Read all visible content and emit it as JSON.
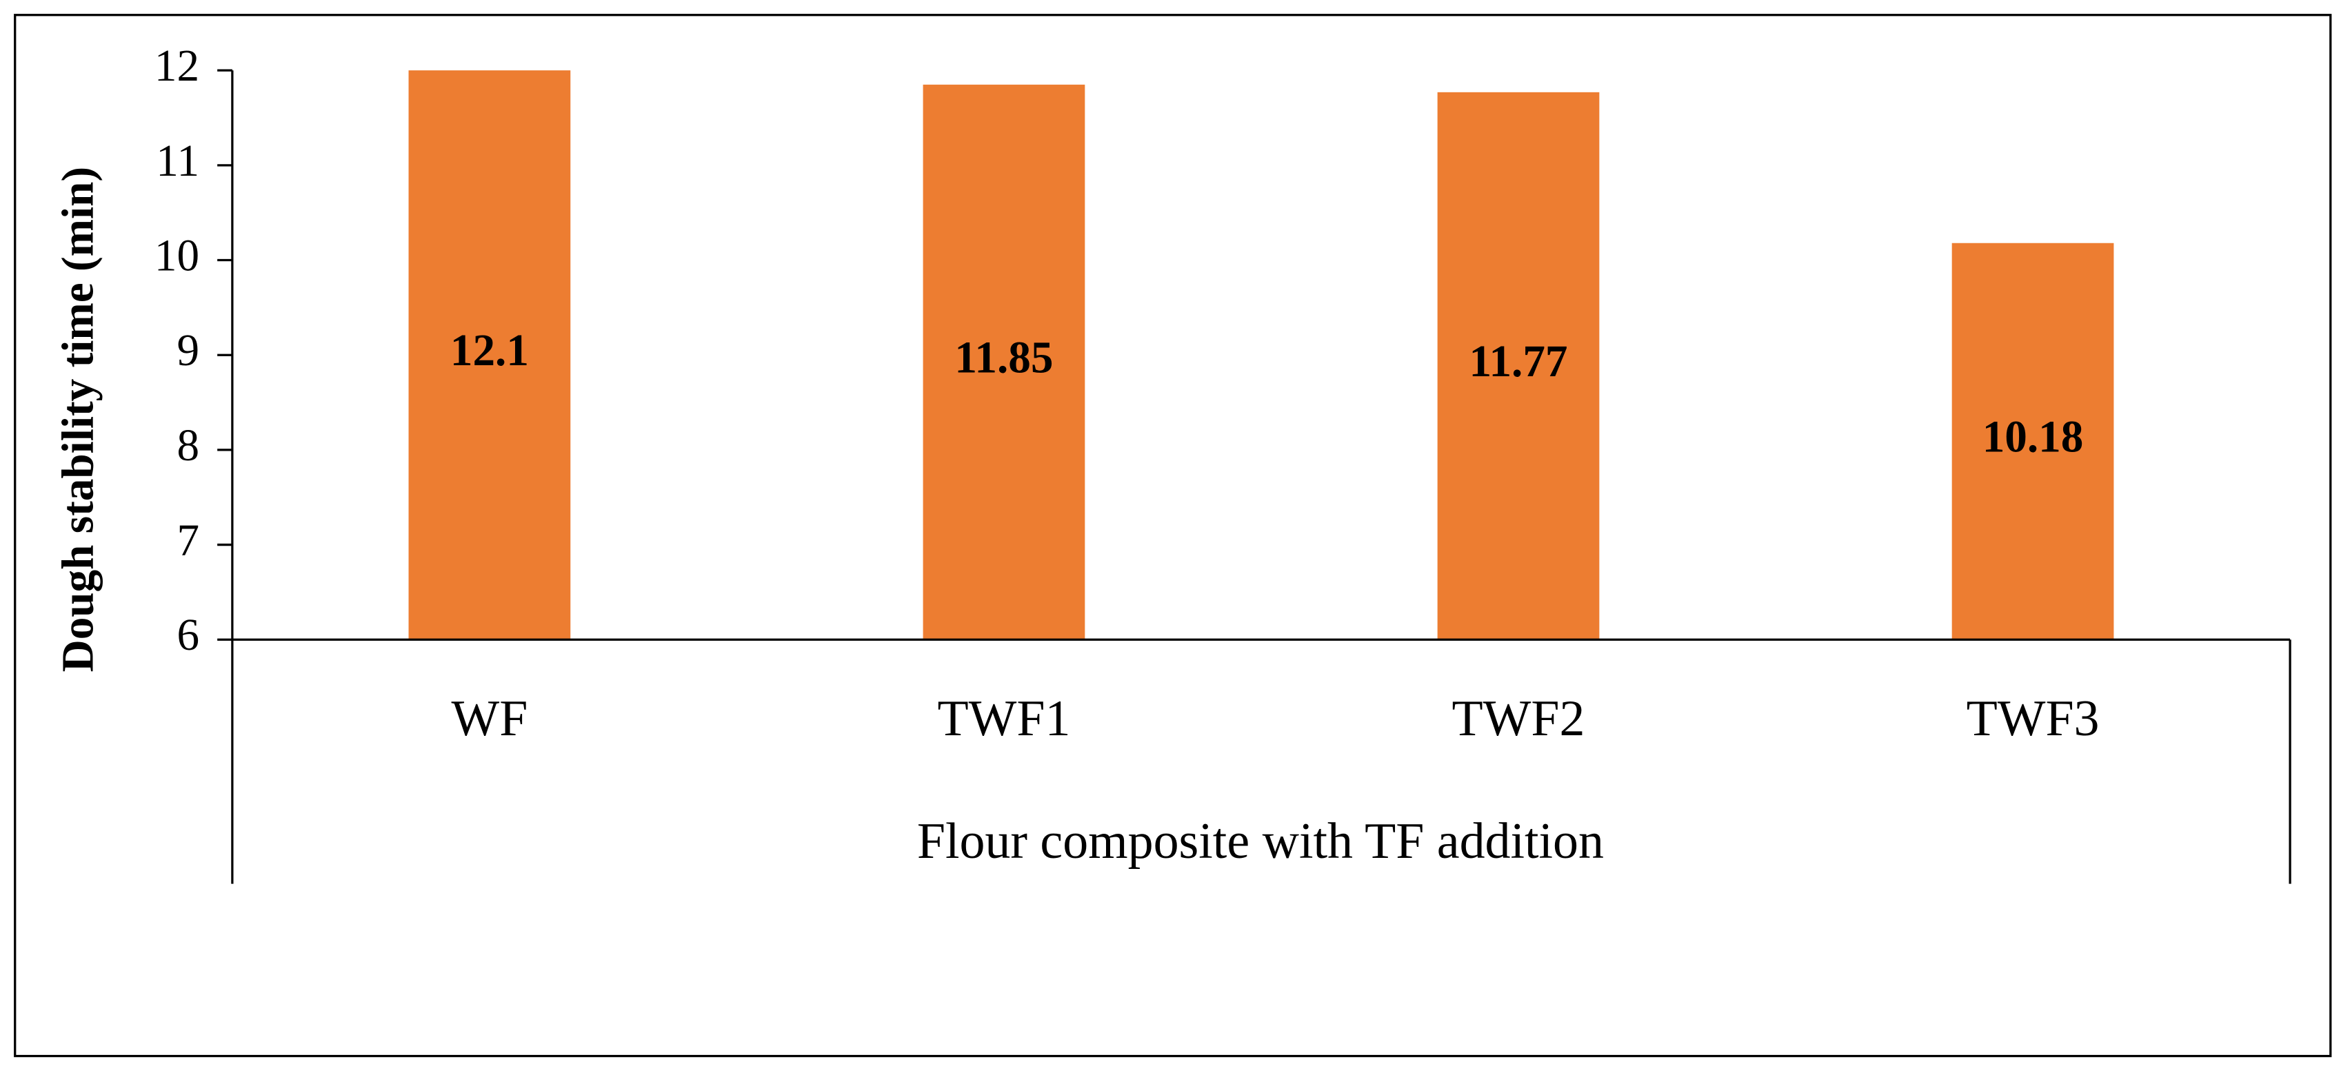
{
  "chart_data": {
    "type": "bar",
    "y_label": "Dough stability time (min)",
    "x_label": "Flour composite with TF addition",
    "categories": [
      "WF",
      "TWF1",
      "TWF2",
      "TWF3"
    ],
    "values": [
      12.1,
      11.85,
      11.77,
      10.18
    ],
    "color": "#ED7D31",
    "ylim": [
      6,
      12
    ],
    "yticks": [
      6,
      7,
      8,
      9,
      10,
      11,
      12
    ],
    "grid": false
  }
}
